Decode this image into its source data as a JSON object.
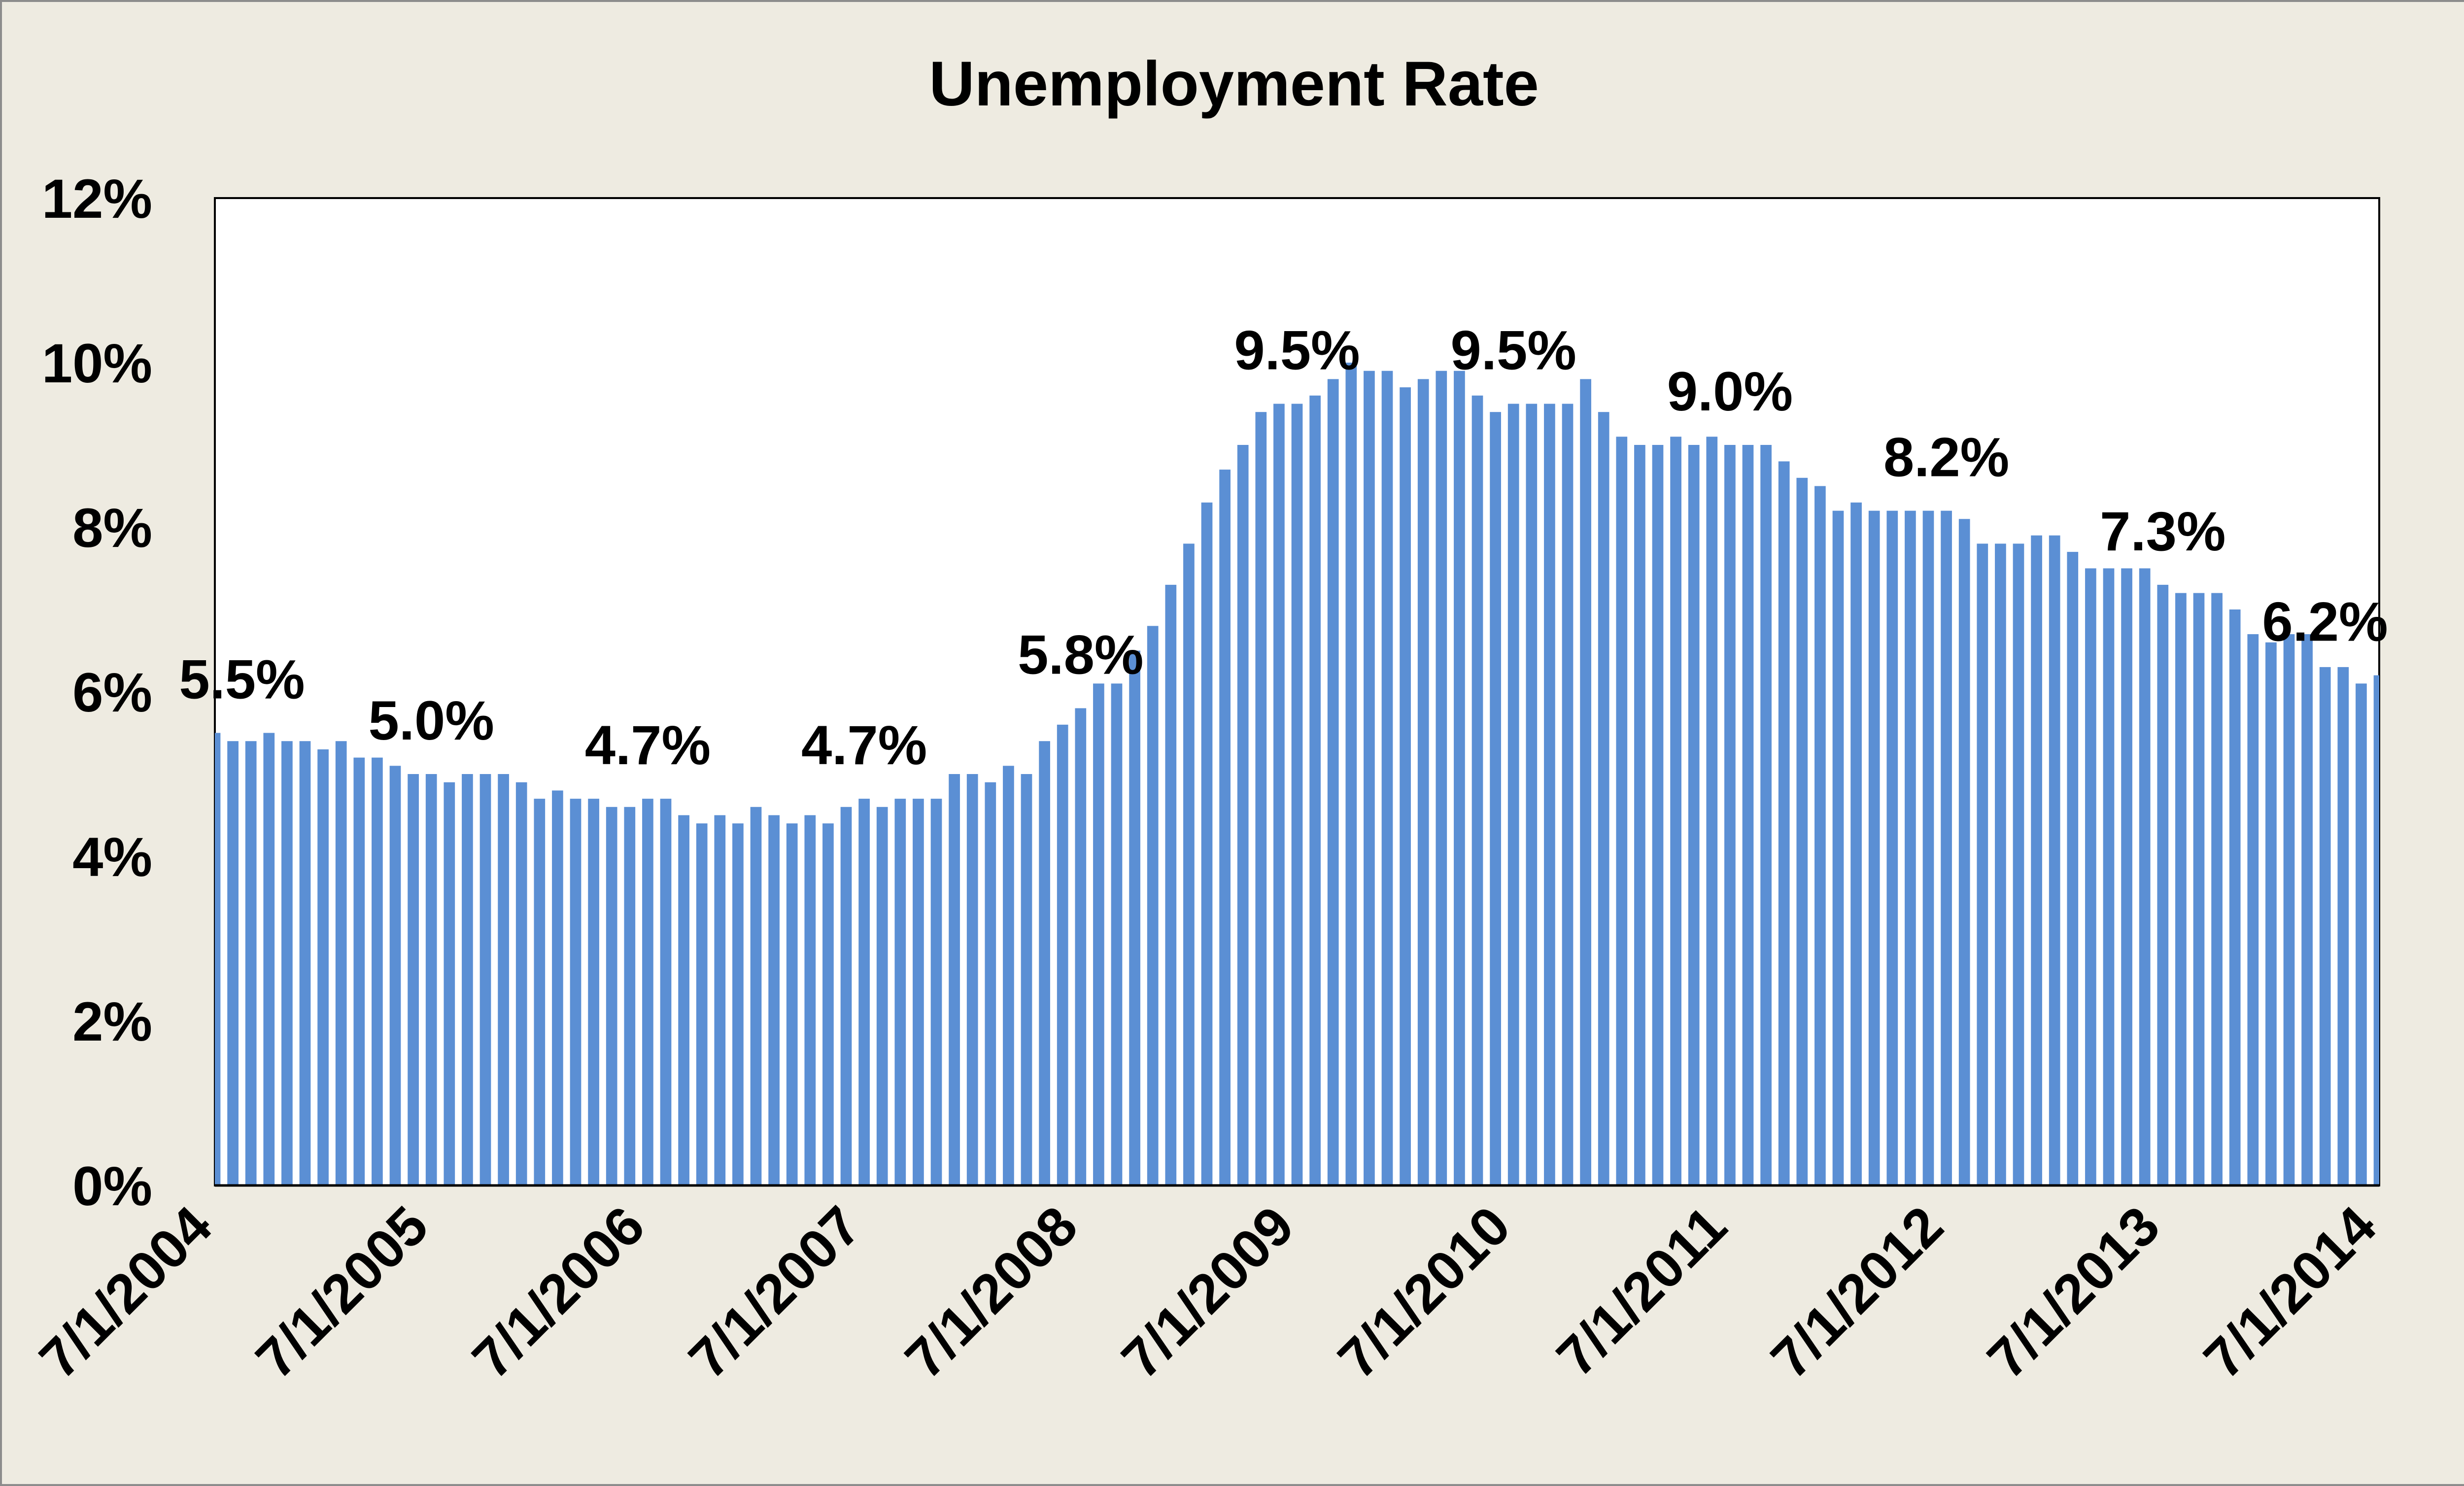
{
  "chart_data": {
    "type": "bar",
    "title": "Unemployment Rate",
    "xlabel": "",
    "ylabel": "",
    "ylim": [
      0,
      12
    ],
    "y_ticks": [
      "0%",
      "2%",
      "4%",
      "6%",
      "8%",
      "10%",
      "12%"
    ],
    "x_tick_labels": [
      "7/1/2004",
      "7/1/2005",
      "7/1/2006",
      "7/1/2007",
      "7/1/2008",
      "7/1/2009",
      "7/1/2010",
      "7/1/2011",
      "7/1/2012",
      "7/1/2013",
      "7/1/2014"
    ],
    "grid": false,
    "legend": "none",
    "bar_color": "#5B8FD4",
    "categories": [
      "7/1/2004",
      "8/1/2004",
      "9/1/2004",
      "10/1/2004",
      "11/1/2004",
      "12/1/2004",
      "1/1/2005",
      "2/1/2005",
      "3/1/2005",
      "4/1/2005",
      "5/1/2005",
      "6/1/2005",
      "7/1/2005",
      "8/1/2005",
      "9/1/2005",
      "10/1/2005",
      "11/1/2005",
      "12/1/2005",
      "1/1/2006",
      "2/1/2006",
      "3/1/2006",
      "4/1/2006",
      "5/1/2006",
      "6/1/2006",
      "7/1/2006",
      "8/1/2006",
      "9/1/2006",
      "10/1/2006",
      "11/1/2006",
      "12/1/2006",
      "1/1/2007",
      "2/1/2007",
      "3/1/2007",
      "4/1/2007",
      "5/1/2007",
      "6/1/2007",
      "7/1/2007",
      "8/1/2007",
      "9/1/2007",
      "10/1/2007",
      "11/1/2007",
      "12/1/2007",
      "1/1/2008",
      "2/1/2008",
      "3/1/2008",
      "4/1/2008",
      "5/1/2008",
      "6/1/2008",
      "7/1/2008",
      "8/1/2008",
      "9/1/2008",
      "10/1/2008",
      "11/1/2008",
      "12/1/2008",
      "1/1/2009",
      "2/1/2009",
      "3/1/2009",
      "4/1/2009",
      "5/1/2009",
      "6/1/2009",
      "7/1/2009",
      "8/1/2009",
      "9/1/2009",
      "10/1/2009",
      "11/1/2009",
      "12/1/2009",
      "1/1/2010",
      "2/1/2010",
      "3/1/2010",
      "4/1/2010",
      "5/1/2010",
      "6/1/2010",
      "7/1/2010",
      "8/1/2010",
      "9/1/2010",
      "10/1/2010",
      "11/1/2010",
      "12/1/2010",
      "1/1/2011",
      "2/1/2011",
      "3/1/2011",
      "4/1/2011",
      "5/1/2011",
      "6/1/2011",
      "7/1/2011",
      "8/1/2011",
      "9/1/2011",
      "10/1/2011",
      "11/1/2011",
      "12/1/2011",
      "1/1/2012",
      "2/1/2012",
      "3/1/2012",
      "4/1/2012",
      "5/1/2012",
      "6/1/2012",
      "7/1/2012",
      "8/1/2012",
      "9/1/2012",
      "10/1/2012",
      "11/1/2012",
      "12/1/2012",
      "1/1/2013",
      "2/1/2013",
      "3/1/2013",
      "4/1/2013",
      "5/1/2013",
      "6/1/2013",
      "7/1/2013",
      "8/1/2013",
      "9/1/2013",
      "10/1/2013",
      "11/1/2013",
      "12/1/2013",
      "1/1/2014",
      "2/1/2014",
      "3/1/2014",
      "4/1/2014",
      "5/1/2014",
      "6/1/2014",
      "7/1/2014"
    ],
    "values": [
      5.5,
      5.4,
      5.4,
      5.5,
      5.4,
      5.4,
      5.3,
      5.4,
      5.2,
      5.2,
      5.1,
      5.0,
      5.0,
      4.9,
      5.0,
      5.0,
      5.0,
      4.9,
      4.7,
      4.8,
      4.7,
      4.7,
      4.6,
      4.6,
      4.7,
      4.7,
      4.5,
      4.4,
      4.5,
      4.4,
      4.6,
      4.5,
      4.4,
      4.5,
      4.4,
      4.6,
      4.7,
      4.6,
      4.7,
      4.7,
      4.7,
      5.0,
      5.0,
      4.9,
      5.1,
      5.0,
      5.4,
      5.6,
      5.8,
      6.1,
      6.1,
      6.5,
      6.8,
      7.3,
      7.8,
      8.3,
      8.7,
      9.0,
      9.4,
      9.5,
      9.5,
      9.6,
      9.8,
      10.0,
      9.9,
      9.9,
      9.7,
      9.8,
      9.9,
      9.9,
      9.6,
      9.4,
      9.5,
      9.5,
      9.5,
      9.5,
      9.8,
      9.4,
      9.1,
      9.0,
      9.0,
      9.1,
      9.0,
      9.1,
      9.0,
      9.0,
      9.0,
      8.8,
      8.6,
      8.5,
      8.2,
      8.3,
      8.2,
      8.2,
      8.2,
      8.2,
      8.2,
      8.1,
      7.8,
      7.8,
      7.8,
      7.9,
      7.9,
      7.7,
      7.5,
      7.5,
      7.5,
      7.5,
      7.3,
      7.2,
      7.2,
      7.2,
      7.0,
      6.7,
      6.6,
      6.7,
      6.7,
      6.3,
      6.3,
      6.1,
      6.2
    ],
    "data_labels": [
      {
        "category": "7/1/2004",
        "text": "5.5%"
      },
      {
        "category": "7/1/2005",
        "text": "5.0%"
      },
      {
        "category": "7/1/2006",
        "text": "4.7%"
      },
      {
        "category": "7/1/2007",
        "text": "4.7%"
      },
      {
        "category": "7/1/2008",
        "text": "5.8%"
      },
      {
        "category": "7/1/2009",
        "text": "9.5%"
      },
      {
        "category": "7/1/2010",
        "text": "9.5%"
      },
      {
        "category": "7/1/2011",
        "text": "9.0%"
      },
      {
        "category": "7/1/2012",
        "text": "8.2%"
      },
      {
        "category": "7/1/2013",
        "text": "7.3%"
      },
      {
        "category": "7/1/2014",
        "text": "6.2%"
      }
    ]
  }
}
